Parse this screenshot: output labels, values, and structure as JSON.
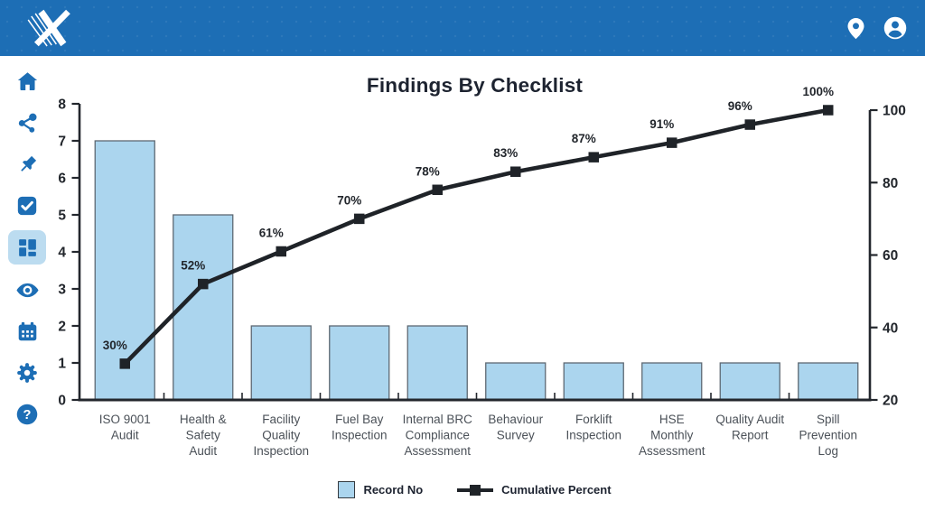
{
  "header": {
    "logo_name": "brand-x-logo",
    "icons": [
      {
        "name": "location-pin-icon"
      },
      {
        "name": "user-profile-icon"
      }
    ],
    "background_color": "#1d6eb5"
  },
  "sidebar": {
    "items": [
      {
        "name": "home-icon",
        "selected": false
      },
      {
        "name": "share-icon",
        "selected": false
      },
      {
        "name": "pin-icon",
        "selected": false
      },
      {
        "name": "checklist-icon",
        "selected": false
      },
      {
        "name": "dashboard-icon",
        "selected": true
      },
      {
        "name": "eye-icon",
        "selected": false
      },
      {
        "name": "calendar-icon",
        "selected": false
      },
      {
        "name": "settings-gear-icon",
        "selected": false
      },
      {
        "name": "help-icon",
        "selected": false
      }
    ],
    "icon_color": "#1d6eb5",
    "selected_bg": "#bcdcf0"
  },
  "chart_data": {
    "type": "bar",
    "subtype": "pareto (bar + cumulative line)",
    "title": "Findings By Checklist",
    "categories": [
      "ISO 9001 Audit",
      "Health & Safety Audit",
      "Facility Quality Inspection",
      "Fuel Bay Inspection",
      "Internal BRC Compliance Assessment",
      "Behaviour Survey",
      "Forklift Inspection",
      "HSE Monthly Assessment",
      "Quality Audit Report",
      "Spill Prevention Log"
    ],
    "category_lines": [
      [
        "ISO 9001",
        "Audit"
      ],
      [
        "Health &",
        "Safety",
        "Audit"
      ],
      [
        "Facility",
        "Quality",
        "Inspection"
      ],
      [
        "Fuel Bay",
        "Inspection"
      ],
      [
        "Internal BRC",
        "Compliance",
        "Assessment"
      ],
      [
        "Behaviour",
        "Survey"
      ],
      [
        "Forklift",
        "Inspection"
      ],
      [
        "HSE",
        "Monthly",
        "Assessment"
      ],
      [
        "Quality Audit",
        "Report"
      ],
      [
        "Spill",
        "Prevention",
        "Log"
      ]
    ],
    "series": [
      {
        "name": "Record No",
        "type": "bar",
        "axis": "left",
        "values": [
          7,
          5,
          2,
          2,
          2,
          1,
          1,
          1,
          1,
          1
        ],
        "color": "#abd5ee",
        "border_color": "#5e6973"
      },
      {
        "name": "Cumulative Percent",
        "type": "line",
        "axis": "right",
        "values": [
          30,
          52,
          61,
          70,
          78,
          83,
          87,
          91,
          96,
          100
        ],
        "labels": [
          "30%",
          "52%",
          "61%",
          "70%",
          "78%",
          "83%",
          "87%",
          "91%",
          "96%",
          "100%"
        ],
        "color": "#1f2328"
      }
    ],
    "left_axis": {
      "range": [
        0,
        8
      ],
      "ticks": [
        0,
        1,
        2,
        3,
        4,
        5,
        6,
        7,
        8
      ]
    },
    "right_axis": {
      "range": [
        20,
        100
      ],
      "ticks": [
        20,
        40,
        60,
        80,
        100
      ]
    },
    "grid": false,
    "legend_position": "bottom",
    "legend": [
      {
        "label": "Record No",
        "swatch": "square",
        "color": "#abd5ee"
      },
      {
        "label": "Cumulative Percent",
        "swatch": "line-marker",
        "color": "#1f2328"
      }
    ],
    "axis_color": "#23272d",
    "label_color": "#4b5158"
  }
}
